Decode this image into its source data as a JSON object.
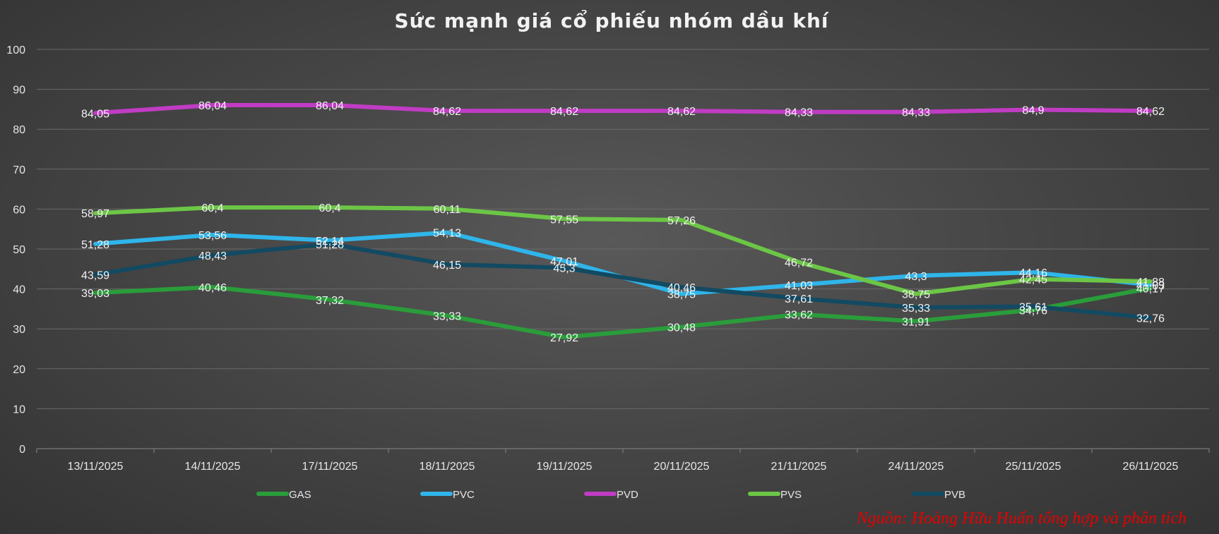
{
  "chart_data": {
    "type": "line",
    "title": "Sức mạnh giá cổ phiếu nhóm dầu khí",
    "source": "Nguồn: Hoàng Hữu Huấn tổng hợp và phân tích",
    "ylim": [
      0,
      100
    ],
    "yticks": [
      "0",
      "10",
      "20",
      "30",
      "40",
      "50",
      "60",
      "70",
      "80",
      "90",
      "100"
    ],
    "grid": true,
    "legend_position": "bottom",
    "categories": [
      "13/11/2025",
      "14/11/2025",
      "17/11/2025",
      "18/11/2025",
      "19/11/2025",
      "20/11/2025",
      "21/11/2025",
      "24/11/2025",
      "25/11/2025",
      "26/11/2025"
    ],
    "series": [
      {
        "name": "GAS",
        "color": "#2a9d3a",
        "values": [
          39.03,
          40.46,
          37.32,
          33.33,
          27.92,
          30.48,
          33.62,
          31.91,
          34.76,
          40.17
        ],
        "labels": [
          "39,03",
          "40,46",
          "37,32",
          "33,33",
          "27,92",
          "30,48",
          "33,62",
          "31,91",
          "34,76",
          "40,17"
        ]
      },
      {
        "name": "PVC",
        "color": "#2fb5ea",
        "values": [
          51.28,
          53.56,
          52.14,
          54.13,
          47.01,
          38.75,
          41.03,
          43.3,
          44.16,
          41.03
        ],
        "labels": [
          "51,28",
          "53,56",
          "52,14",
          "54,13",
          "47,01",
          "38,75",
          "41,03",
          "43,3",
          "44,16",
          "41,03"
        ]
      },
      {
        "name": "PVD",
        "color": "#c03cc4",
        "values": [
          84.05,
          86.04,
          86.04,
          84.62,
          84.62,
          84.62,
          84.33,
          84.33,
          84.9,
          84.62
        ],
        "labels": [
          "84,05",
          "86,04",
          "86,04",
          "84,62",
          "84,62",
          "84,62",
          "84,33",
          "84,33",
          "84,9",
          "84,62"
        ]
      },
      {
        "name": "PVS",
        "color": "#6cc646",
        "values": [
          58.97,
          60.4,
          60.4,
          60.11,
          57.55,
          57.26,
          46.72,
          38.75,
          42.45,
          41.88
        ],
        "labels": [
          "58,97",
          "60,4",
          "60,4",
          "60,11",
          "57,55",
          "57,26",
          "46,72",
          "38,75",
          "42,45",
          "41,88"
        ]
      },
      {
        "name": "PVB",
        "color": "#124a62",
        "values": [
          43.59,
          48.43,
          51.28,
          46.15,
          45.3,
          40.46,
          37.61,
          35.33,
          35.61,
          32.76
        ],
        "labels": [
          "43,59",
          "48,43",
          "51,28",
          "46,15",
          "45,3",
          "40,46",
          "37,61",
          "35,33",
          "35,61",
          "32,76"
        ]
      }
    ]
  }
}
